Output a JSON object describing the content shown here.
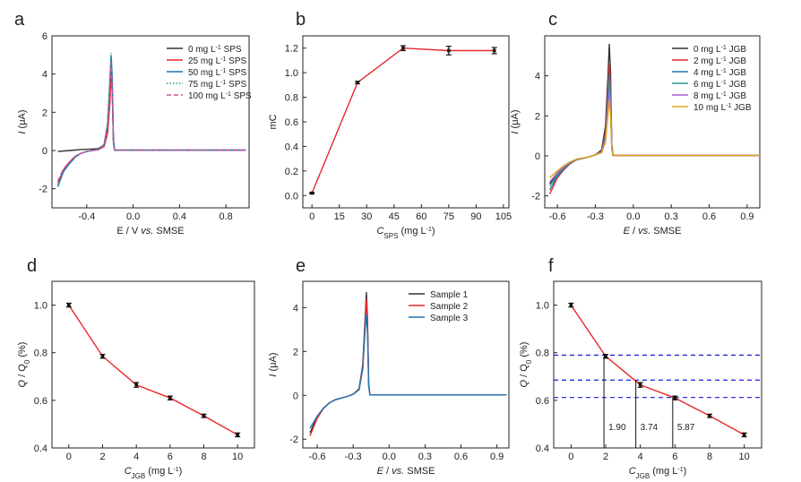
{
  "chart_data": [
    {
      "panel": "a",
      "type": "line",
      "xlabel": "E / V vs. SMSE",
      "ylabel": "I (μA)",
      "xlim": [
        -0.7,
        1.0
      ],
      "ylim": [
        -3,
        6
      ],
      "xticks": [
        -0.4,
        0.0,
        0.4,
        0.8
      ],
      "xtick_labels": [
        "-0.4",
        "0.0",
        "0.4",
        "0.8"
      ],
      "yticks": [
        -2,
        0,
        2,
        4,
        6
      ],
      "ytick_labels": [
        "-2",
        "0",
        "2",
        "4",
        "6"
      ],
      "grid": false,
      "legend": "top-right",
      "series": [
        {
          "name": "0 mg L-1 SPS",
          "color": "#333333",
          "dash": "",
          "x": [
            -0.65,
            -0.55,
            -0.45,
            -0.35,
            -0.3,
            -0.25,
            -0.22,
            -0.2,
            -0.19,
            -0.18,
            -0.17,
            -0.16,
            0.0,
            0.5,
            0.97
          ],
          "y": [
            -0.05,
            0.0,
            0.05,
            0.08,
            0.1,
            0.3,
            1.2,
            3.2,
            4.4,
            3.2,
            0.4,
            0.02,
            0.02,
            0.02,
            0.02
          ]
        },
        {
          "name": "25 mg L-1 SPS",
          "color": "#e8282b",
          "dash": "",
          "x": [
            -0.65,
            -0.6,
            -0.55,
            -0.5,
            -0.45,
            -0.4,
            -0.3,
            -0.25,
            -0.22,
            -0.2,
            -0.19,
            -0.18,
            -0.17,
            -0.16,
            0.0,
            0.5,
            0.97
          ],
          "y": [
            -1.7,
            -1.0,
            -0.6,
            -0.3,
            -0.15,
            -0.05,
            0.05,
            0.2,
            0.9,
            2.5,
            4.1,
            3.0,
            0.5,
            0.02,
            0.02,
            0.02,
            0.02
          ]
        },
        {
          "name": "50 mg L-1 SPS",
          "color": "#1f77b4",
          "dash": "",
          "x": [
            -0.65,
            -0.6,
            -0.55,
            -0.5,
            -0.45,
            -0.4,
            -0.3,
            -0.25,
            -0.22,
            -0.2,
            -0.19,
            -0.18,
            -0.17,
            -0.16,
            0.0,
            0.5,
            0.97
          ],
          "y": [
            -1.9,
            -1.1,
            -0.7,
            -0.35,
            -0.15,
            -0.05,
            0.05,
            0.3,
            1.4,
            3.7,
            5.0,
            3.8,
            0.6,
            0.02,
            0.02,
            0.02,
            0.02
          ]
        },
        {
          "name": "75 mg L-1 SPS",
          "color": "#2a9d8f",
          "dash": "1.5,2",
          "x": [
            -0.65,
            -0.6,
            -0.55,
            -0.5,
            -0.45,
            -0.4,
            -0.3,
            -0.25,
            -0.22,
            -0.2,
            -0.19,
            -0.18,
            -0.17,
            -0.16,
            0.0,
            0.5,
            0.97
          ],
          "y": [
            -1.8,
            -1.05,
            -0.65,
            -0.33,
            -0.15,
            -0.05,
            0.05,
            0.3,
            1.5,
            3.8,
            5.1,
            3.9,
            0.6,
            0.02,
            0.02,
            0.02,
            0.02
          ]
        },
        {
          "name": "100 mg L-1 SPS",
          "color": "#d0509a",
          "dash": "5,3",
          "x": [
            -0.65,
            -0.6,
            -0.55,
            -0.5,
            -0.45,
            -0.4,
            -0.3,
            -0.25,
            -0.22,
            -0.2,
            -0.19,
            -0.18,
            -0.17,
            -0.16,
            0.0,
            0.5,
            0.97
          ],
          "y": [
            -1.6,
            -0.95,
            -0.6,
            -0.3,
            -0.14,
            -0.05,
            0.05,
            0.25,
            1.2,
            3.3,
            4.6,
            3.4,
            0.5,
            0.02,
            0.02,
            0.02,
            0.02
          ]
        }
      ]
    },
    {
      "panel": "b",
      "type": "line",
      "xlabel": "CSPS (mg L-1)",
      "ylabel": "mC",
      "xlim": [
        -5,
        108
      ],
      "ylim": [
        -0.1,
        1.3
      ],
      "xticks": [
        0,
        15,
        30,
        45,
        60,
        75,
        90,
        105
      ],
      "xtick_labels": [
        "0",
        "15",
        "30",
        "45",
        "60",
        "75",
        "90",
        "105"
      ],
      "yticks": [
        0.0,
        0.2,
        0.4,
        0.6,
        0.8,
        1.0,
        1.2
      ],
      "ytick_labels": [
        "0.0",
        "0.2",
        "0.4",
        "0.6",
        "0.8",
        "1.0",
        "1.2"
      ],
      "grid": false,
      "series": [
        {
          "name": "",
          "color": "#e8282b",
          "x": [
            0,
            25,
            50,
            75,
            100
          ],
          "y": [
            0.02,
            0.92,
            1.2,
            1.18,
            1.18
          ],
          "err": [
            0.005,
            0.01,
            0.02,
            0.035,
            0.025
          ]
        }
      ]
    },
    {
      "panel": "c",
      "type": "line",
      "xlabel": "E / vs. SMSE",
      "ylabel": "I (μA)",
      "xlim": [
        -0.7,
        1.0
      ],
      "ylim": [
        -2.6,
        6.0
      ],
      "xticks": [
        -0.6,
        -0.3,
        0.0,
        0.3,
        0.6,
        0.9
      ],
      "xtick_labels": [
        "-0.6",
        "-0.3",
        "0.0",
        "0.3",
        "0.6",
        "0.9"
      ],
      "yticks": [
        -2,
        0,
        2,
        4
      ],
      "ytick_labels": [
        "-2",
        "0",
        "2",
        "4"
      ],
      "grid": false,
      "legend": "top-right",
      "series": [
        {
          "name": "0 mg L-1 JGB",
          "color": "#333333",
          "x": [
            -0.66,
            -0.6,
            -0.55,
            -0.5,
            -0.45,
            -0.35,
            -0.3,
            -0.25,
            -0.22,
            -0.2,
            -0.19,
            -0.18,
            -0.17,
            -0.16,
            0.0,
            0.5,
            1.0
          ],
          "y": [
            -1.4,
            -0.9,
            -0.6,
            -0.35,
            -0.2,
            -0.05,
            0.05,
            0.3,
            1.5,
            4.0,
            5.6,
            4.2,
            0.6,
            0.02,
            0.02,
            0.02,
            0.02
          ]
        },
        {
          "name": "2 mg L-1 JGB",
          "color": "#e8282b",
          "x": [
            -0.66,
            -0.6,
            -0.55,
            -0.5,
            -0.45,
            -0.35,
            -0.3,
            -0.25,
            -0.22,
            -0.2,
            -0.19,
            -0.18,
            -0.17,
            -0.16,
            0.0,
            0.5,
            1.0
          ],
          "y": [
            -1.9,
            -1.1,
            -0.7,
            -0.4,
            -0.2,
            -0.05,
            0.05,
            0.25,
            1.2,
            3.3,
            4.6,
            3.4,
            0.5,
            0.02,
            0.02,
            0.02,
            0.02
          ]
        },
        {
          "name": "4 mg L-1 JGB",
          "color": "#1f77b4",
          "x": [
            -0.66,
            -0.6,
            -0.55,
            -0.5,
            -0.45,
            -0.35,
            -0.3,
            -0.25,
            -0.22,
            -0.2,
            -0.19,
            -0.18,
            -0.17,
            -0.16,
            0.0,
            0.5,
            1.0
          ],
          "y": [
            -1.7,
            -1.0,
            -0.65,
            -0.38,
            -0.2,
            -0.05,
            0.05,
            0.22,
            1.0,
            2.9,
            4.1,
            3.0,
            0.45,
            0.02,
            0.02,
            0.02,
            0.02
          ]
        },
        {
          "name": "6 mg L-1 JGB",
          "color": "#2a9d8f",
          "x": [
            -0.66,
            -0.6,
            -0.55,
            -0.5,
            -0.45,
            -0.35,
            -0.3,
            -0.25,
            -0.22,
            -0.2,
            -0.19,
            -0.18,
            -0.17,
            -0.16,
            0.0,
            0.5,
            1.0
          ],
          "y": [
            -1.5,
            -0.95,
            -0.6,
            -0.35,
            -0.2,
            -0.05,
            0.05,
            0.2,
            0.9,
            2.7,
            3.8,
            2.8,
            0.4,
            0.02,
            0.02,
            0.02,
            0.02
          ]
        },
        {
          "name": "8 mg L-1 JGB",
          "color": "#b15fd6",
          "x": [
            -0.66,
            -0.6,
            -0.55,
            -0.5,
            -0.45,
            -0.35,
            -0.3,
            -0.25,
            -0.22,
            -0.2,
            -0.19,
            -0.18,
            -0.17,
            -0.16,
            0.0,
            0.5,
            1.0
          ],
          "y": [
            -1.3,
            -0.85,
            -0.55,
            -0.32,
            -0.18,
            -0.05,
            0.05,
            0.18,
            0.8,
            2.4,
            3.3,
            2.5,
            0.35,
            0.02,
            0.02,
            0.02,
            0.02
          ]
        },
        {
          "name": "10 mg L-1 JGB",
          "color": "#e3a21a",
          "x": [
            -0.66,
            -0.6,
            -0.55,
            -0.5,
            -0.45,
            -0.35,
            -0.3,
            -0.25,
            -0.22,
            -0.2,
            -0.19,
            -0.18,
            -0.17,
            -0.16,
            0.0,
            0.5,
            1.0
          ],
          "y": [
            -1.1,
            -0.75,
            -0.5,
            -0.3,
            -0.17,
            -0.05,
            0.05,
            0.15,
            0.7,
            2.1,
            2.8,
            2.1,
            0.3,
            0.02,
            0.02,
            0.02,
            0.02
          ]
        }
      ]
    },
    {
      "panel": "d",
      "type": "line",
      "xlabel": "CJGB (mg L-1)",
      "ylabel": "Q / Q0 (%)",
      "xlim": [
        -1,
        11
      ],
      "ylim": [
        0.4,
        1.1
      ],
      "xticks": [
        0,
        2,
        4,
        6,
        8,
        10
      ],
      "xtick_labels": [
        "0",
        "2",
        "4",
        "6",
        "8",
        "10"
      ],
      "yticks": [
        0.4,
        0.6,
        0.8,
        1.0
      ],
      "ytick_labels": [
        "0.4",
        "0.6",
        "0.8",
        "1.0"
      ],
      "grid": false,
      "series": [
        {
          "name": "",
          "color": "#e8282b",
          "x": [
            0,
            2,
            4,
            6,
            8,
            10
          ],
          "y": [
            1.0,
            0.785,
            0.665,
            0.61,
            0.535,
            0.455
          ],
          "err": [
            0.008,
            0.008,
            0.01,
            0.008,
            0.007,
            0.008
          ]
        }
      ]
    },
    {
      "panel": "e",
      "type": "line",
      "xlabel": "E / vs. SMSE",
      "ylabel": "I (μA)",
      "xlim": [
        -0.72,
        1.0
      ],
      "ylim": [
        -2.4,
        5.2
      ],
      "xticks": [
        -0.6,
        -0.3,
        0.0,
        0.3,
        0.6,
        0.9
      ],
      "xtick_labels": [
        "-0.6",
        "-0.3",
        "0.0",
        "0.3",
        "0.6",
        "0.9"
      ],
      "yticks": [
        -2,
        0,
        2,
        4
      ],
      "ytick_labels": [
        "-2",
        "0",
        "2",
        "4"
      ],
      "grid": false,
      "legend": "top-right",
      "series": [
        {
          "name": "Sample 1",
          "color": "#333333",
          "x": [
            -0.66,
            -0.6,
            -0.55,
            -0.5,
            -0.45,
            -0.35,
            -0.3,
            -0.25,
            -0.22,
            -0.2,
            -0.19,
            -0.18,
            -0.17,
            -0.16,
            0.0,
            0.5,
            0.98
          ],
          "y": [
            -1.7,
            -1.0,
            -0.6,
            -0.35,
            -0.2,
            -0.05,
            0.05,
            0.3,
            1.4,
            3.5,
            4.7,
            3.5,
            0.5,
            0.02,
            0.02,
            0.02,
            0.02
          ]
        },
        {
          "name": "Sample 2",
          "color": "#e8282b",
          "x": [
            -0.66,
            -0.6,
            -0.55,
            -0.5,
            -0.45,
            -0.35,
            -0.3,
            -0.25,
            -0.22,
            -0.2,
            -0.19,
            -0.18,
            -0.17,
            -0.16,
            0.0,
            0.5,
            0.98
          ],
          "y": [
            -1.85,
            -1.05,
            -0.62,
            -0.35,
            -0.2,
            -0.05,
            0.05,
            0.28,
            1.3,
            3.3,
            4.4,
            3.3,
            0.48,
            0.02,
            0.02,
            0.02,
            0.02
          ]
        },
        {
          "name": "Sample 3",
          "color": "#1f77b4",
          "x": [
            -0.66,
            -0.6,
            -0.55,
            -0.5,
            -0.45,
            -0.35,
            -0.3,
            -0.25,
            -0.22,
            -0.2,
            -0.19,
            -0.18,
            -0.17,
            -0.16,
            0.0,
            0.5,
            0.98
          ],
          "y": [
            -1.5,
            -0.95,
            -0.6,
            -0.35,
            -0.2,
            -0.05,
            0.05,
            0.25,
            1.2,
            3.0,
            3.7,
            2.8,
            0.4,
            0.02,
            0.02,
            0.02,
            0.02
          ]
        }
      ]
    },
    {
      "panel": "f",
      "type": "line",
      "xlabel": "CJGB (mg L-1)",
      "ylabel": "Q / Q0 (%)",
      "xlim": [
        -1,
        11
      ],
      "ylim": [
        0.4,
        1.1
      ],
      "xticks": [
        0,
        2,
        4,
        6,
        8,
        10
      ],
      "xtick_labels": [
        "0",
        "2",
        "4",
        "6",
        "8",
        "10"
      ],
      "yticks": [
        0.4,
        0.6,
        0.8,
        1.0
      ],
      "ytick_labels": [
        "0.4",
        "0.6",
        "0.8",
        "1.0"
      ],
      "grid": false,
      "series": [
        {
          "name": "",
          "color": "#e8282b",
          "x": [
            0,
            2,
            4,
            6,
            8,
            10
          ],
          "y": [
            1.0,
            0.785,
            0.665,
            0.61,
            0.535,
            0.455
          ],
          "err": [
            0.008,
            0.008,
            0.01,
            0.008,
            0.007,
            0.008
          ]
        }
      ],
      "hlines": [
        0.79,
        0.685,
        0.612
      ],
      "hline_color": "#1a1adb",
      "annotations": [
        {
          "x": 1.9,
          "y": 0.785,
          "text": "1.90"
        },
        {
          "x": 3.74,
          "y": 0.685,
          "text": "3.74"
        },
        {
          "x": 5.87,
          "y": 0.612,
          "text": "5.87"
        }
      ]
    }
  ],
  "panel_labels": [
    "a",
    "b",
    "c",
    "d",
    "e",
    "f"
  ]
}
